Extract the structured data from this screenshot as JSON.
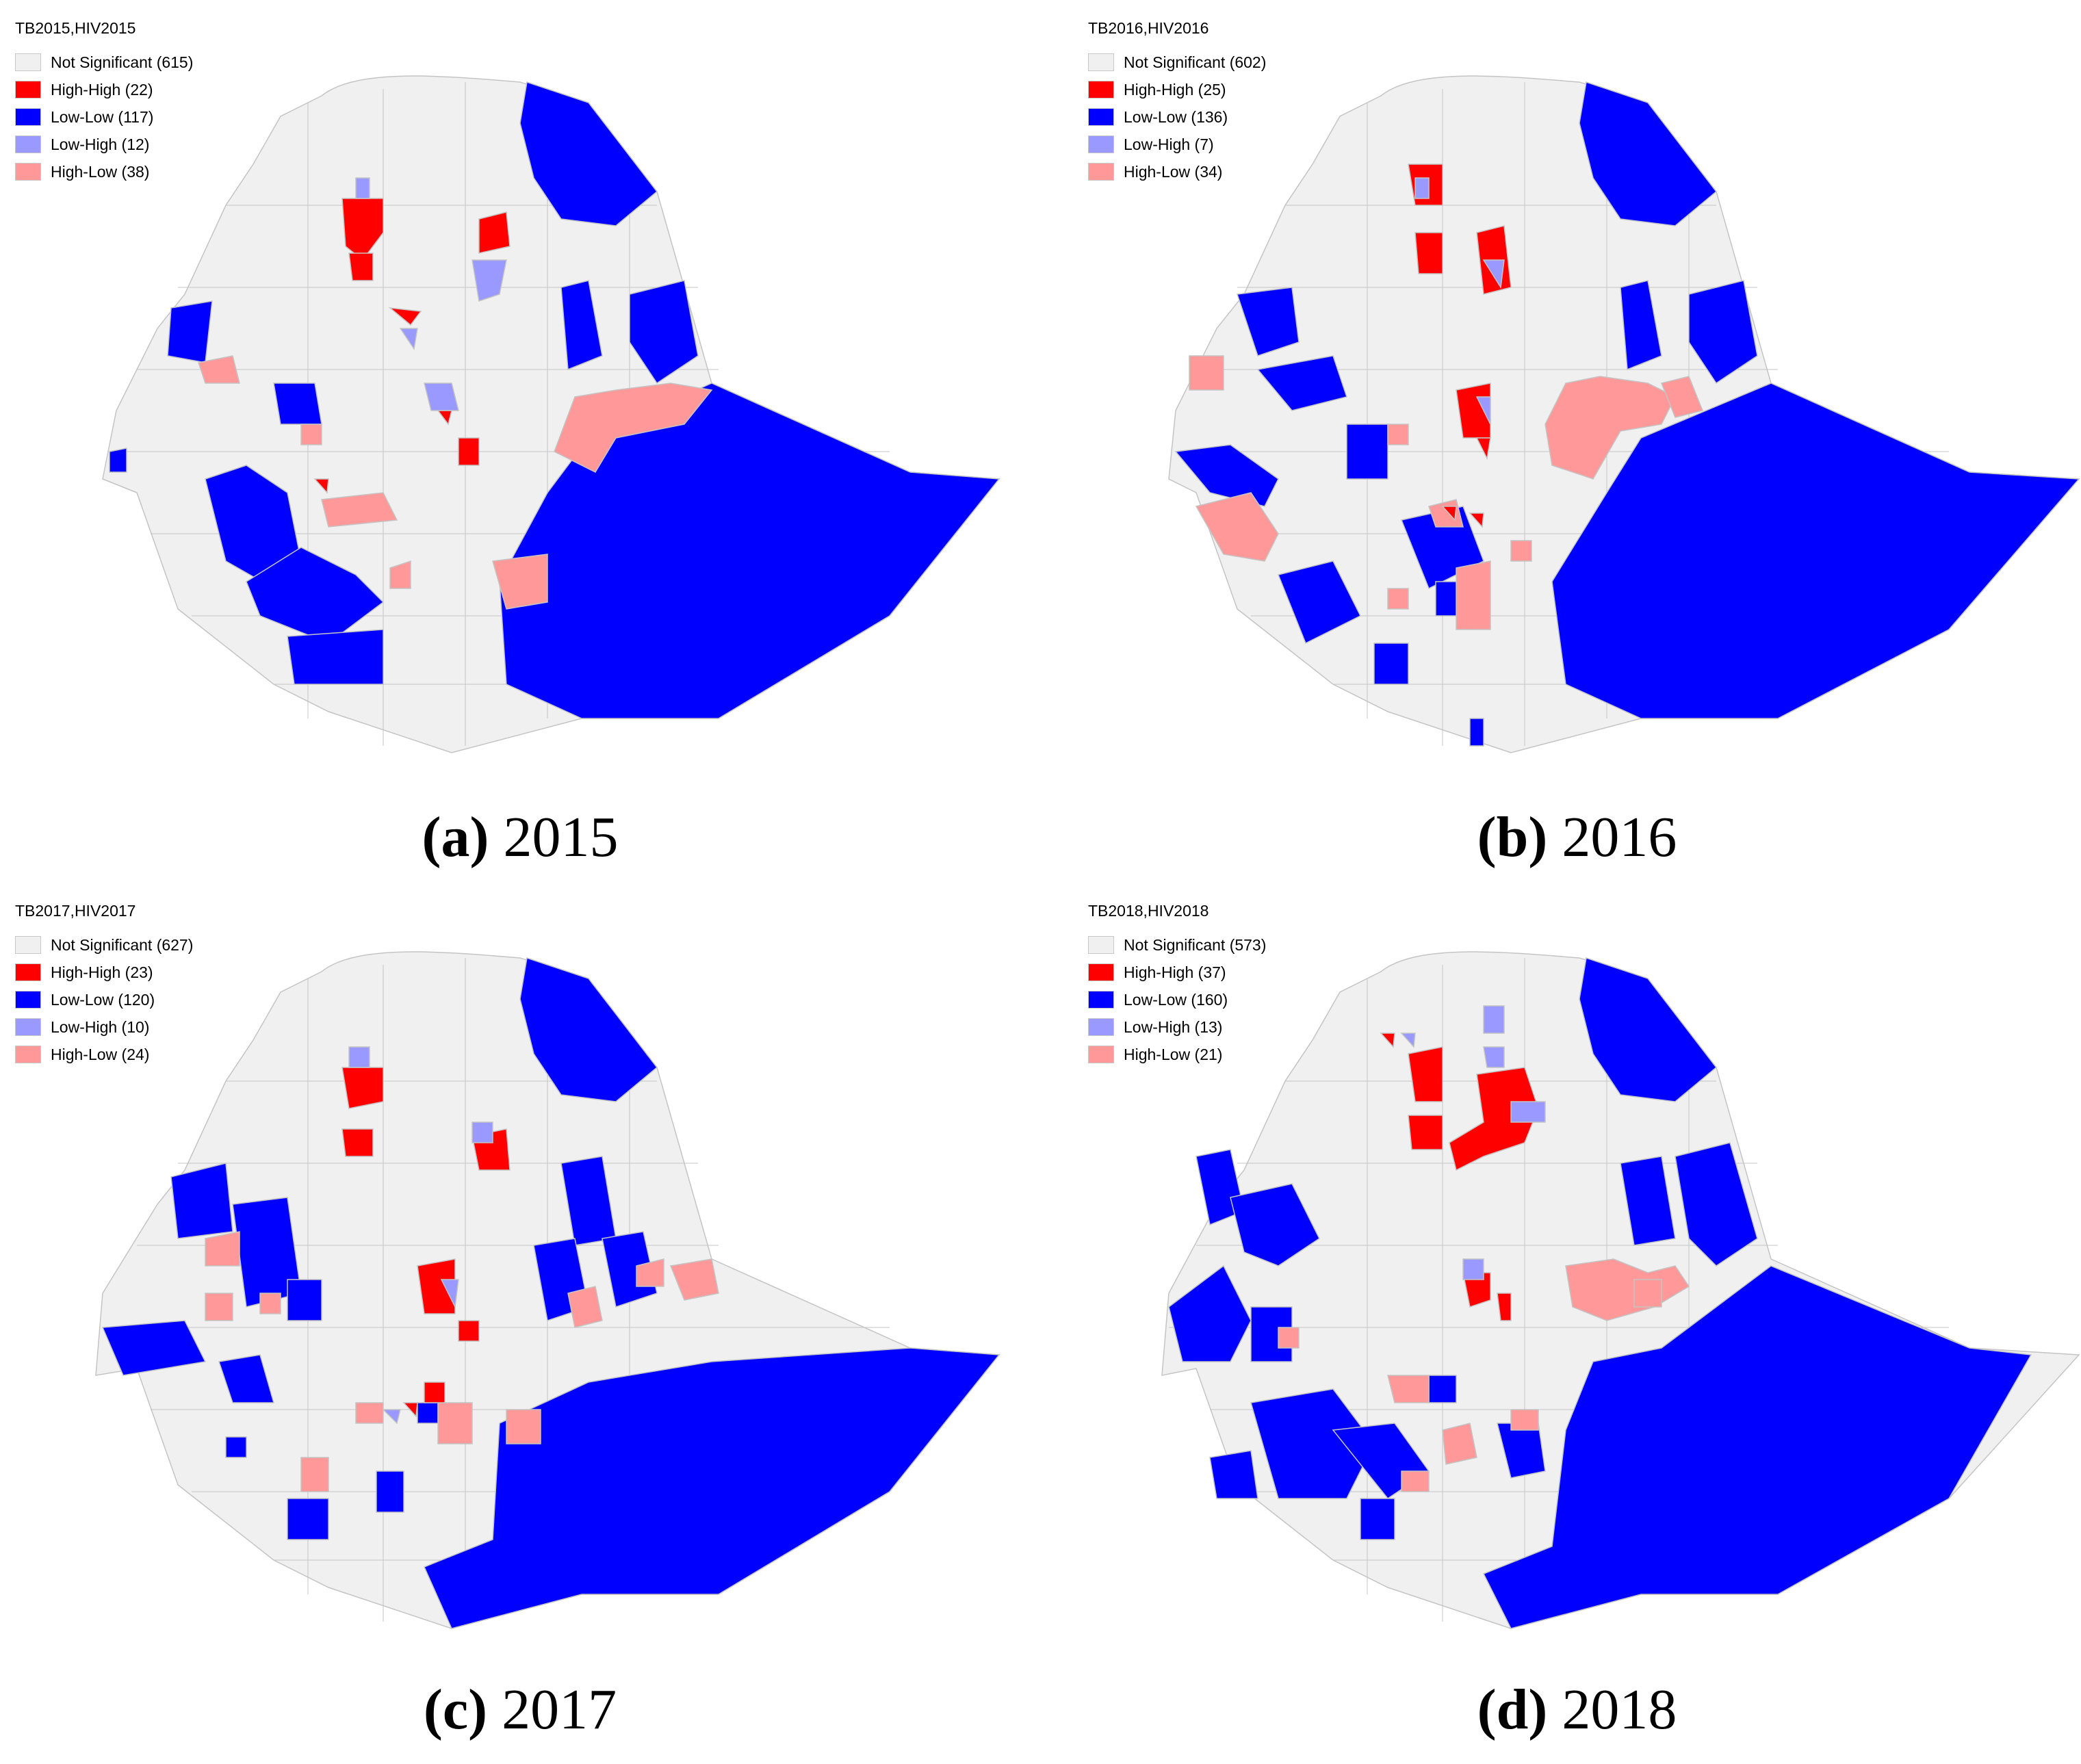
{
  "colors": {
    "not_significant": "#f0f0f0",
    "high_high": "#ff0000",
    "low_low": "#0000ff",
    "low_high": "#9999ff",
    "high_low": "#ff9999",
    "border": "#c4c4c4"
  },
  "panels": [
    {
      "legend_title": "TB2015,HIV2015",
      "caption_letter": "(a)",
      "caption_year": "2015",
      "legend": [
        {
          "key": "not_significant",
          "label": "Not Significant (615)"
        },
        {
          "key": "high_high",
          "label": "High-High (22)"
        },
        {
          "key": "low_low",
          "label": "Low-Low (117)"
        },
        {
          "key": "low_high",
          "label": "Low-High (12)"
        },
        {
          "key": "high_low",
          "label": "High-Low (38)"
        }
      ]
    },
    {
      "legend_title": "TB2016,HIV2016",
      "caption_letter": "(b)",
      "caption_year": "2016",
      "legend": [
        {
          "key": "not_significant",
          "label": "Not Significant (602)"
        },
        {
          "key": "high_high",
          "label": "High-High (25)"
        },
        {
          "key": "low_low",
          "label": "Low-Low (136)"
        },
        {
          "key": "low_high",
          "label": "Low-High (7)"
        },
        {
          "key": "high_low",
          "label": "High-Low (34)"
        }
      ]
    },
    {
      "legend_title": "TB2017,HIV2017",
      "caption_letter": "(c)",
      "caption_year": "2017",
      "legend": [
        {
          "key": "not_significant",
          "label": "Not Significant (627)"
        },
        {
          "key": "high_high",
          "label": "High-High (23)"
        },
        {
          "key": "low_low",
          "label": "Low-Low (120)"
        },
        {
          "key": "low_high",
          "label": "Low-High (10)"
        },
        {
          "key": "high_low",
          "label": "High-Low (24)"
        }
      ]
    },
    {
      "legend_title": "TB2018,HIV2018",
      "caption_letter": "(d)",
      "caption_year": "2018",
      "legend": [
        {
          "key": "not_significant",
          "label": "Not Significant (573)"
        },
        {
          "key": "high_high",
          "label": "High-High (37)"
        },
        {
          "key": "low_low",
          "label": "Low-Low (160)"
        },
        {
          "key": "low_high",
          "label": "Low-High (13)"
        },
        {
          "key": "high_low",
          "label": "High-Low (21)"
        }
      ]
    }
  ]
}
